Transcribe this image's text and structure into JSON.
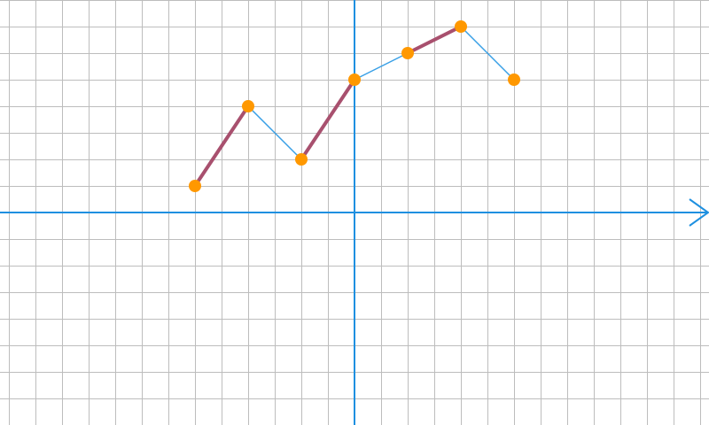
{
  "chart_data": {
    "type": "line",
    "title": "",
    "xlabel": "",
    "ylabel": "",
    "grid": true,
    "xlim": [
      -13.333,
      13.333
    ],
    "ylim": [
      -8,
      8
    ],
    "x_step": 1,
    "y_step": 1,
    "colors": {
      "grid": "#bdbdbd",
      "axis": "#1e90e0",
      "series": "#3aa0e6",
      "highlight": "#a8506e",
      "marker": "#ff9800"
    },
    "series": [
      {
        "points": [
          {
            "x": -6,
            "y": 1
          },
          {
            "x": -4,
            "y": 4
          },
          {
            "x": -2,
            "y": 2
          },
          {
            "x": 0,
            "y": 5
          },
          {
            "x": 2,
            "y": 6
          },
          {
            "x": 4,
            "y": 7
          },
          {
            "x": 6,
            "y": 5
          }
        ]
      }
    ],
    "highlighted_segments": [
      [
        {
          "x": -6,
          "y": 1
        },
        {
          "x": -4,
          "y": 4
        }
      ],
      [
        {
          "x": -2,
          "y": 2
        },
        {
          "x": 0,
          "y": 5
        }
      ],
      [
        {
          "x": 2,
          "y": 6
        },
        {
          "x": 4,
          "y": 7
        }
      ]
    ]
  }
}
